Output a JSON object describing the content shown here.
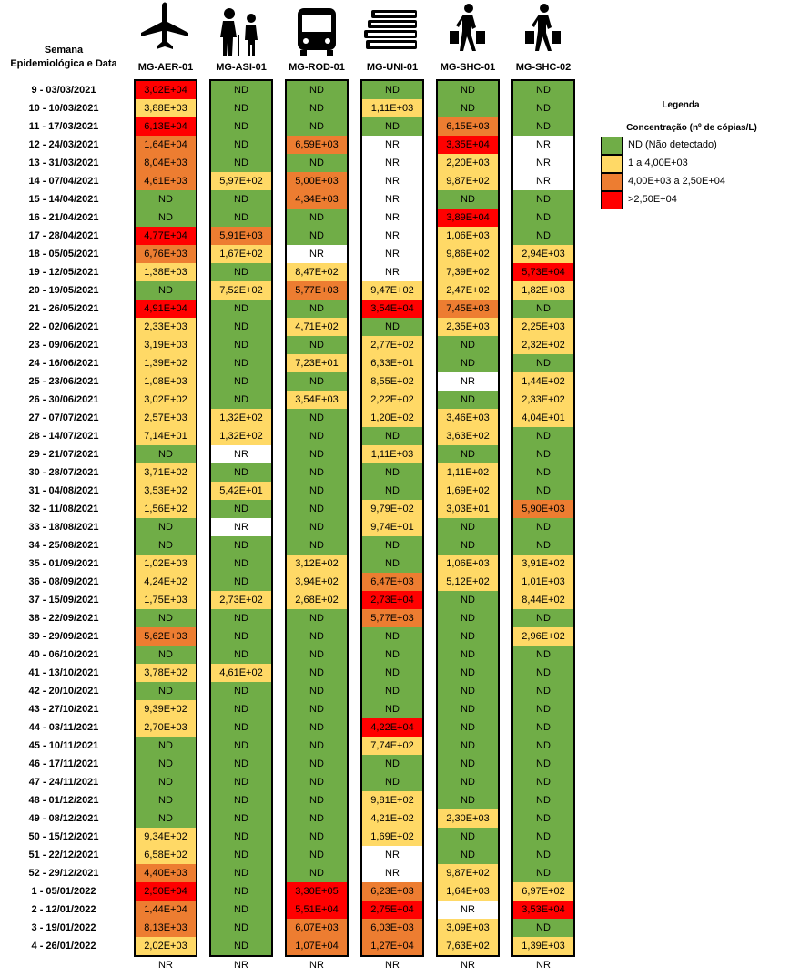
{
  "header": {
    "row_label": [
      "Semana",
      "Epidemiológica e Data"
    ],
    "columns": [
      "MG-AER-01",
      "MG-ASI-01",
      "MG-ROD-01",
      "MG-UNI-01",
      "MG-SHC-01",
      "MG-SHC-02"
    ]
  },
  "rows": [
    {
      "week": "9 - 03/03/2021",
      "cells": [
        "3,02E+04",
        "ND",
        "ND",
        "ND",
        "ND",
        "ND"
      ]
    },
    {
      "week": "10 - 10/03/2021",
      "cells": [
        "3,88E+03",
        "ND",
        "ND",
        "1,11E+03",
        "ND",
        "ND"
      ]
    },
    {
      "week": "11 - 17/03/2021",
      "cells": [
        "6,13E+04",
        "ND",
        "ND",
        "ND",
        "6,15E+03",
        "ND"
      ]
    },
    {
      "week": "12 - 24/03/2021",
      "cells": [
        "1,64E+04",
        "ND",
        "6,59E+03",
        "NR",
        "3,35E+04",
        "NR"
      ]
    },
    {
      "week": "13 - 31/03/2021",
      "cells": [
        "8,04E+03",
        "ND",
        "ND",
        "NR",
        "2,20E+03",
        "NR"
      ]
    },
    {
      "week": "14 - 07/04/2021",
      "cells": [
        "4,61E+03",
        "5,97E+02",
        "5,00E+03",
        "NR",
        "9,87E+02",
        "NR"
      ]
    },
    {
      "week": "15 - 14/04/2021",
      "cells": [
        "ND",
        "ND",
        "4,34E+03",
        "NR",
        "ND",
        "ND"
      ]
    },
    {
      "week": "16 - 21/04/2021",
      "cells": [
        "ND",
        "ND",
        "ND",
        "NR",
        "3,89E+04",
        "ND"
      ]
    },
    {
      "week": "17 - 28/04/2021",
      "cells": [
        "4,77E+04",
        "5,91E+03",
        "ND",
        "NR",
        "1,06E+03",
        "ND"
      ]
    },
    {
      "week": "18 - 05/05/2021",
      "cells": [
        "6,76E+03",
        "1,67E+02",
        "NR",
        "NR",
        "9,86E+02",
        "2,94E+03"
      ]
    },
    {
      "week": "19 - 12/05/2021",
      "cells": [
        "1,38E+03",
        "ND",
        "8,47E+02",
        "NR",
        "7,39E+02",
        "5,73E+04"
      ]
    },
    {
      "week": "20 - 19/05/2021",
      "cells": [
        "ND",
        "7,52E+02",
        "5,77E+03",
        "9,47E+02",
        "2,47E+02",
        "1,82E+03"
      ]
    },
    {
      "week": "21 - 26/05/2021",
      "cells": [
        "4,91E+04",
        "ND",
        "ND",
        "3,54E+04",
        "7,45E+03",
        "ND"
      ]
    },
    {
      "week": "22 - 02/06/2021",
      "cells": [
        "2,33E+03",
        "ND",
        "4,71E+02",
        "ND",
        "2,35E+03",
        "2,25E+03"
      ]
    },
    {
      "week": "23 - 09/06/2021",
      "cells": [
        "3,19E+03",
        "ND",
        "ND",
        "2,77E+02",
        "ND",
        "2,32E+02"
      ]
    },
    {
      "week": "24 - 16/06/2021",
      "cells": [
        "1,39E+02",
        "ND",
        "7,23E+01",
        "6,33E+01",
        "ND",
        "ND"
      ]
    },
    {
      "week": "25 - 23/06/2021",
      "cells": [
        "1,08E+03",
        "ND",
        "ND",
        "8,55E+02",
        "NR",
        "1,44E+02"
      ]
    },
    {
      "week": "26 - 30/06/2021",
      "cells": [
        "3,02E+02",
        "ND",
        "3,54E+03",
        "2,22E+02",
        "ND",
        "2,33E+02"
      ]
    },
    {
      "week": "27 - 07/07/2021",
      "cells": [
        "2,57E+03",
        "1,32E+02",
        "ND",
        "1,20E+02",
        "3,46E+03",
        "4,04E+01"
      ]
    },
    {
      "week": "28 - 14/07/2021",
      "cells": [
        "7,14E+01",
        "1,32E+02",
        "ND",
        "ND",
        "3,63E+02",
        "ND"
      ]
    },
    {
      "week": "29 - 21/07/2021",
      "cells": [
        "ND",
        "NR",
        "ND",
        "1,11E+03",
        "ND",
        "ND"
      ]
    },
    {
      "week": "30 - 28/07/2021",
      "cells": [
        "3,71E+02",
        "ND",
        "ND",
        "ND",
        "1,11E+02",
        "ND"
      ]
    },
    {
      "week": "31 - 04/08/2021",
      "cells": [
        "3,53E+02",
        "5,42E+01",
        "ND",
        "ND",
        "1,69E+02",
        "ND"
      ]
    },
    {
      "week": "32 - 11/08/2021",
      "cells": [
        "1,56E+02",
        "ND",
        "ND",
        "9,79E+02",
        "3,03E+01",
        "5,90E+03"
      ]
    },
    {
      "week": "33 - 18/08/2021",
      "cells": [
        "ND",
        "NR",
        "ND",
        "9,74E+01",
        "ND",
        "ND"
      ]
    },
    {
      "week": "34 - 25/08/2021",
      "cells": [
        "ND",
        "ND",
        "ND",
        "ND",
        "ND",
        "ND"
      ]
    },
    {
      "week": "35 - 01/09/2021",
      "cells": [
        "1,02E+03",
        "ND",
        "3,12E+02",
        "ND",
        "1,06E+03",
        "3,91E+02"
      ]
    },
    {
      "week": "36 - 08/09/2021",
      "cells": [
        "4,24E+02",
        "ND",
        "3,94E+02",
        "6,47E+03",
        "5,12E+02",
        "1,01E+03"
      ]
    },
    {
      "week": "37 - 15/09/2021",
      "cells": [
        "1,75E+03",
        "2,73E+02",
        "2,68E+02",
        "2,73E+04",
        "ND",
        "8,44E+02"
      ]
    },
    {
      "week": "38 - 22/09/2021",
      "cells": [
        "ND",
        "ND",
        "ND",
        "5,77E+03",
        "ND",
        "ND"
      ]
    },
    {
      "week": "39 - 29/09/2021",
      "cells": [
        "5,62E+03",
        "ND",
        "ND",
        "ND",
        "ND",
        "2,96E+02"
      ]
    },
    {
      "week": "40 - 06/10/2021",
      "cells": [
        "ND",
        "ND",
        "ND",
        "ND",
        "ND",
        "ND"
      ]
    },
    {
      "week": "41 - 13/10/2021",
      "cells": [
        "3,78E+02",
        "4,61E+02",
        "ND",
        "ND",
        "ND",
        "ND"
      ]
    },
    {
      "week": "42 - 20/10/2021",
      "cells": [
        "ND",
        "ND",
        "ND",
        "ND",
        "ND",
        "ND"
      ]
    },
    {
      "week": "43 - 27/10/2021",
      "cells": [
        "9,39E+02",
        "ND",
        "ND",
        "ND",
        "ND",
        "ND"
      ]
    },
    {
      "week": "44 - 03/11/2021",
      "cells": [
        "2,70E+03",
        "ND",
        "ND",
        "4,22E+04",
        "ND",
        "ND"
      ]
    },
    {
      "week": "45 - 10/11/2021",
      "cells": [
        "ND",
        "ND",
        "ND",
        "7,74E+02",
        "ND",
        "ND"
      ]
    },
    {
      "week": "46 - 17/11/2021",
      "cells": [
        "ND",
        "ND",
        "ND",
        "ND",
        "ND",
        "ND"
      ]
    },
    {
      "week": "47 - 24/11/2021",
      "cells": [
        "ND",
        "ND",
        "ND",
        "ND",
        "ND",
        "ND"
      ]
    },
    {
      "week": "48 - 01/12/2021",
      "cells": [
        "ND",
        "ND",
        "ND",
        "9,81E+02",
        "ND",
        "ND"
      ]
    },
    {
      "week": "49 - 08/12/2021",
      "cells": [
        "ND",
        "ND",
        "ND",
        "4,21E+02",
        "2,30E+03",
        "ND"
      ]
    },
    {
      "week": "50 - 15/12/2021",
      "cells": [
        "9,34E+02",
        "ND",
        "ND",
        "1,69E+02",
        "ND",
        "ND"
      ]
    },
    {
      "week": "51 - 22/12/2021",
      "cells": [
        "6,58E+02",
        "ND",
        "ND",
        "NR",
        "ND",
        "ND"
      ]
    },
    {
      "week": "52 - 29/12/2021",
      "cells": [
        "4,40E+03",
        "ND",
        "ND",
        "NR",
        "9,87E+02",
        "ND"
      ]
    },
    {
      "week": "1 - 05/01/2022",
      "cells": [
        "2,50E+04",
        "ND",
        "3,30E+05",
        "6,23E+03",
        "1,64E+03",
        "6,97E+02"
      ]
    },
    {
      "week": "2 - 12/01/2022",
      "cells": [
        "1,44E+04",
        "ND",
        "5,51E+04",
        "2,75E+04",
        "NR",
        "3,53E+04"
      ]
    },
    {
      "week": "3 - 19/01/2022",
      "cells": [
        "8,13E+03",
        "ND",
        "6,07E+03",
        "6,03E+03",
        "3,09E+03",
        "ND"
      ]
    },
    {
      "week": "4 - 26/01/2022",
      "cells": [
        "2,02E+03",
        "ND",
        "1,07E+04",
        "1,27E+04",
        "7,63E+02",
        "1,39E+03"
      ]
    }
  ],
  "footer": [
    "NR",
    "NR",
    "NR",
    "NR",
    "NR",
    "NR"
  ],
  "legend": {
    "title": "Legenda",
    "subtitle": "Concentração (nº de cópias/L)",
    "items": [
      {
        "label": "ND (Não detectado)",
        "color": "#70ad47"
      },
      {
        "label": "1 a 4,00E+03",
        "color": "#ffd966"
      },
      {
        "label": "4,00E+03 a 2,50E+04",
        "color": "#ed7d31"
      },
      {
        "label": ">2,50E+04",
        "color": "#ff0000"
      }
    ]
  }
}
